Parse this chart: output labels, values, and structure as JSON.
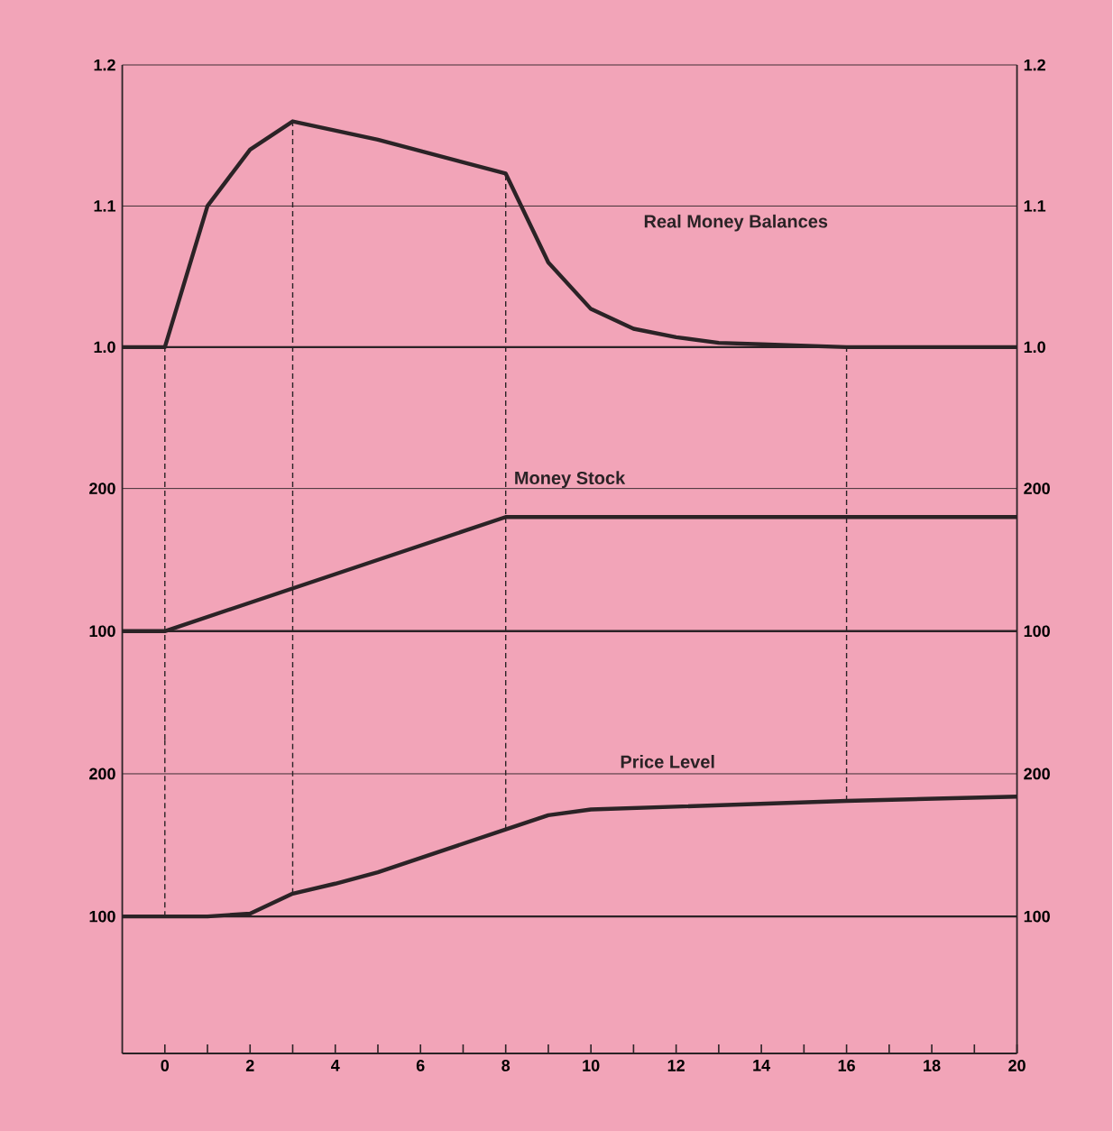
{
  "chart_data": [
    {
      "type": "line",
      "x": [
        -1,
        0,
        1,
        2,
        3,
        5,
        8,
        9,
        10,
        11,
        12,
        13,
        14,
        16,
        20
      ],
      "series": [
        {
          "name": "Real Money Balances",
          "color": "#2b2326",
          "values": [
            1.0,
            1.0,
            1.1,
            1.14,
            1.16,
            1.147,
            1.123,
            1.06,
            1.027,
            1.013,
            1.007,
            1.003,
            1.002,
            1.0,
            1.0
          ]
        }
      ],
      "xlim": [
        -1,
        20
      ],
      "ylim": [
        0.92,
        1.2
      ],
      "yticks": [
        {
          "value": 1.0,
          "label": "1.0"
        },
        1.1,
        1.2
      ],
      "y2lim": [
        0.92,
        1.2
      ],
      "y2ticks": [
        {
          "value": 1.0,
          "label": "1.0"
        },
        1.1,
        1.2
      ],
      "grid": "y",
      "tick_labels": "y",
      "ref_lines": [
        {
          "axis": "y",
          "value": 1.0,
          "line_style": "solid"
        },
        {
          "axis": "x",
          "value": 0,
          "line_style": "dashed"
        },
        {
          "axis": "x",
          "value": 3,
          "line_style": "dashed"
        },
        {
          "axis": "x",
          "value": 8,
          "line_style": "dashed"
        },
        {
          "axis": "x",
          "value": 16,
          "line_style": "dashed"
        }
      ]
    },
    {
      "type": "line",
      "x": [
        -1,
        0,
        8,
        20
      ],
      "series": [
        {
          "name": "Money Stock",
          "color": "#2b2326",
          "values": [
            100,
            100,
            180,
            180
          ]
        }
      ],
      "xlim": [
        -1,
        20
      ],
      "ylim": [
        24,
        220
      ],
      "yticks": [
        100,
        200
      ],
      "y2lim": [
        24,
        220
      ],
      "y2ticks": [
        100,
        200
      ],
      "grid": "y",
      "tick_labels": "y",
      "ref_lines": [
        {
          "axis": "y",
          "value": 100,
          "line_style": "solid"
        },
        {
          "axis": "x",
          "value": 0,
          "line_style": "dashed"
        },
        {
          "axis": "x",
          "value": 3,
          "line_style": "dashed"
        },
        {
          "axis": "x",
          "value": 8,
          "line_style": "dashed"
        },
        {
          "axis": "x",
          "value": 16,
          "line_style": "dashed"
        }
      ]
    },
    {
      "type": "line",
      "x": [
        -1,
        1,
        2,
        3,
        4,
        5,
        8,
        9,
        10,
        16,
        20
      ],
      "series": [
        {
          "name": "Price Level",
          "color": "#2b2326",
          "values": [
            100,
            100,
            102,
            116,
            123,
            131,
            161,
            171,
            175,
            181,
            184
          ]
        }
      ],
      "xlim": [
        -1,
        20
      ],
      "xticks": [
        0,
        {
          "value": 1,
          "label": null
        },
        2,
        {
          "value": 3,
          "label": null
        },
        4,
        {
          "value": 5,
          "label": null
        },
        6,
        {
          "value": 7,
          "label": null
        },
        8,
        {
          "value": 9,
          "label": null
        },
        10,
        {
          "value": 11,
          "label": null
        },
        12,
        {
          "value": 13,
          "label": null
        },
        14,
        {
          "value": 15,
          "label": null
        },
        16,
        {
          "value": 17,
          "label": null
        },
        18,
        {
          "value": 19,
          "label": null
        },
        20
      ],
      "ylim": [
        4,
        224
      ],
      "yticks": [
        100,
        200
      ],
      "y2lim": [
        4,
        224
      ],
      "y2ticks": [
        100,
        200
      ],
      "grid": "y",
      "ref_lines": [
        {
          "axis": "y",
          "value": 100,
          "line_style": "solid"
        },
        {
          "axis": "x",
          "value": 0,
          "line_style": "dashed"
        },
        {
          "axis": "x",
          "value": 3,
          "line_style": "dashed"
        },
        {
          "axis": "x",
          "value": 8,
          "line_style": "dashed"
        },
        {
          "axis": "x",
          "value": 16,
          "line_style": "dashed"
        }
      ]
    }
  ]
}
